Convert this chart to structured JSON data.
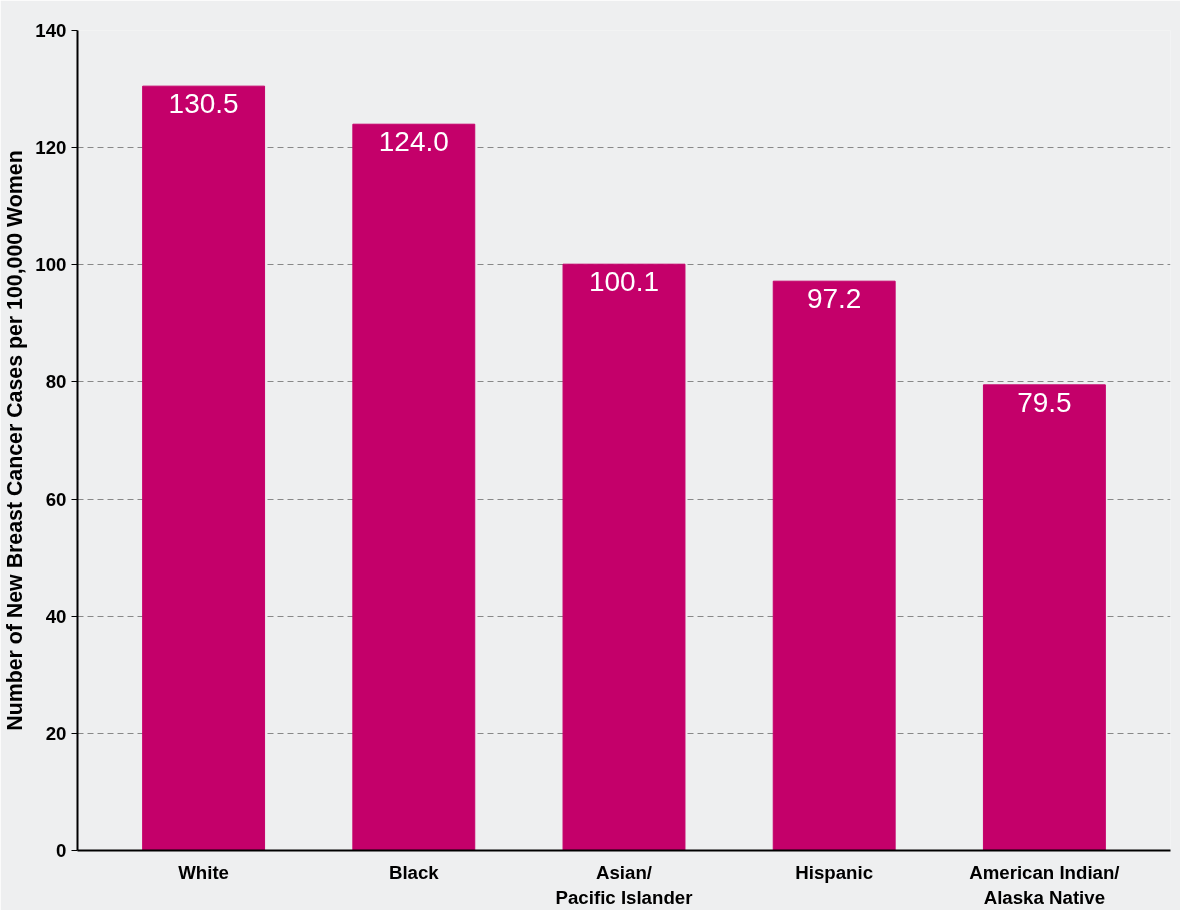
{
  "chart_data": {
    "type": "bar",
    "ylabel": "Number of New Breast Cancer Cases per 100,000 Women",
    "categories": [
      "White",
      "Black",
      "Asian/\nPacific Islander",
      "Hispanic",
      "American Indian/\nAlaska Native"
    ],
    "values": [
      130.5,
      124.0,
      100.1,
      97.2,
      79.5
    ],
    "color": "#c4006a",
    "ylim": [
      0,
      140
    ],
    "yticks": [
      0,
      20,
      40,
      60,
      80,
      100,
      120,
      140
    ],
    "grid": "y",
    "value_labels": [
      "130.5",
      "124.0",
      "100.1",
      "97.2",
      "79.5"
    ]
  }
}
